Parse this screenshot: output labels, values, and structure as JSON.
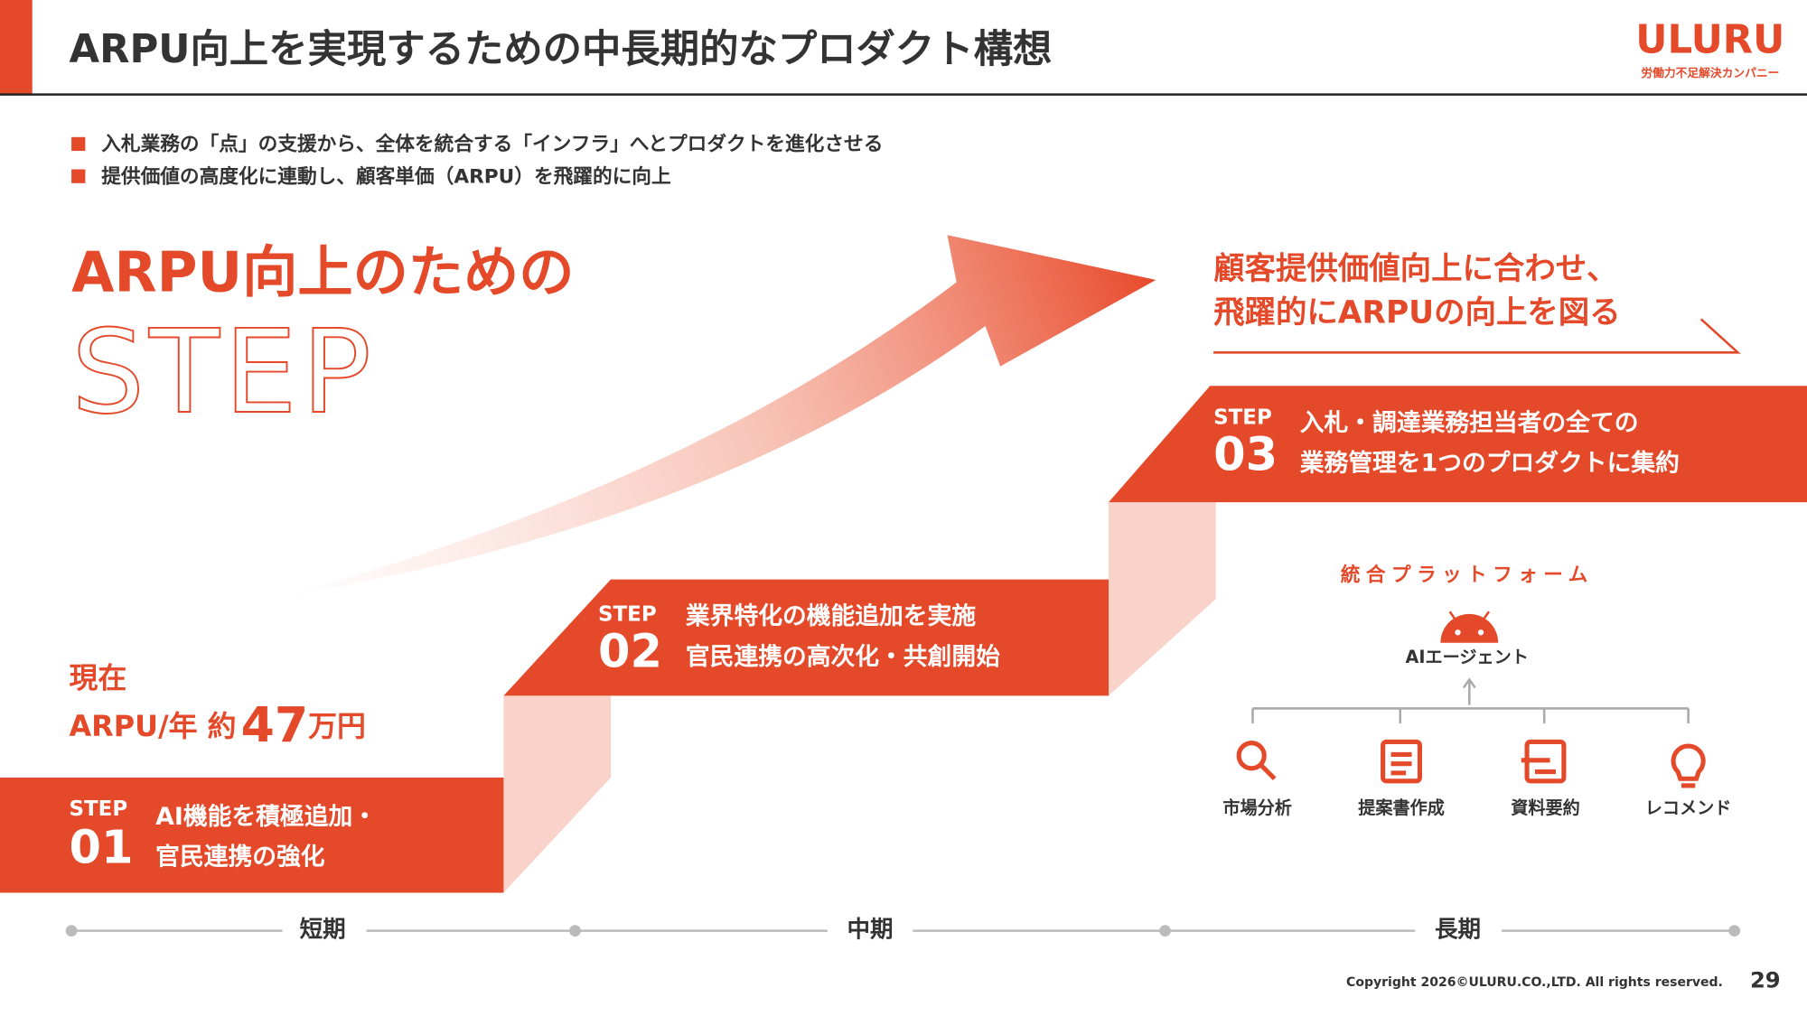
{
  "header": {
    "title": "ARPU向上を実現するための中長期的なプロダクト構想",
    "logo": "ULURU",
    "tagline": "労働力不足解決カンパニー"
  },
  "bullets": [
    "入札業務の「点」の支援から、全体を統合する「インフラ」へとプロダクトを進化させる",
    "提供価値の高度化に連動し、顧客単価（ARPU）を飛躍的に向上"
  ],
  "heading": {
    "line1": "ARPU向上のための",
    "line2": "STEP"
  },
  "callout": [
    "顧客提供価値向上に合わせ、",
    "飛躍的にARPUの向上を図る"
  ],
  "current": {
    "label": "現在",
    "prefix": "ARPU/年 約",
    "amount": "47",
    "unit": "万円"
  },
  "steps": [
    {
      "label": "STEP",
      "number": "01",
      "lines": [
        "AI機能を積極追加・",
        "官民連携の強化"
      ]
    },
    {
      "label": "STEP",
      "number": "02",
      "lines": [
        "業界特化の機能追加を実施",
        "官民連携の高次化・共創開始"
      ]
    },
    {
      "label": "STEP",
      "number": "03",
      "lines": [
        "入札・調達業務担当者の全ての",
        "業務管理を1つのプロダクトに集約"
      ]
    }
  ],
  "platform": {
    "title": "統合プラットフォーム",
    "agent": "AIエージェント",
    "tools": [
      "市場分析",
      "提案書作成",
      "資料要約",
      "レコメンド"
    ]
  },
  "timeline": [
    "短期",
    "中期",
    "長期"
  ],
  "footer": {
    "copyright": "Copyright 2026©ULURU.CO.,LTD. All rights reserved.",
    "page": "29"
  }
}
